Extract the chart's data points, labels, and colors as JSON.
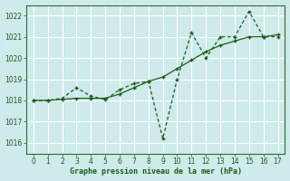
{
  "title": "Graphe pression niveau de la mer (hPa)",
  "background_color": "#ceeaea",
  "grid_color": "#b8d8d8",
  "line_color": "#1a5c1a",
  "spine_color": "#2d6e2d",
  "xlim": [
    -0.5,
    17.5
  ],
  "ylim": [
    1015.5,
    1022.5
  ],
  "yticks": [
    1016,
    1017,
    1018,
    1019,
    1020,
    1021,
    1022
  ],
  "xticks": [
    0,
    1,
    2,
    3,
    4,
    5,
    6,
    7,
    8,
    9,
    10,
    11,
    12,
    13,
    14,
    15,
    16,
    17
  ],
  "line1_x": [
    0,
    1,
    2,
    3,
    4,
    5,
    6,
    7,
    8,
    9,
    10,
    11,
    12,
    13,
    14,
    15,
    16,
    17
  ],
  "line1_y": [
    1018.0,
    1018.0,
    1018.1,
    1018.6,
    1018.2,
    1018.05,
    1018.5,
    1018.8,
    1018.9,
    1016.2,
    1019.0,
    1021.2,
    1020.0,
    1021.0,
    1021.0,
    1022.2,
    1021.0,
    1021.0
  ],
  "line2_x": [
    0,
    1,
    2,
    3,
    4,
    5,
    6,
    7,
    8,
    9,
    10,
    11,
    12,
    13,
    14,
    15,
    16,
    17
  ],
  "line2_y": [
    1018.0,
    1018.0,
    1018.05,
    1018.1,
    1018.1,
    1018.1,
    1018.3,
    1018.6,
    1018.9,
    1019.1,
    1019.5,
    1019.9,
    1020.3,
    1020.6,
    1020.8,
    1021.0,
    1021.0,
    1021.1
  ]
}
